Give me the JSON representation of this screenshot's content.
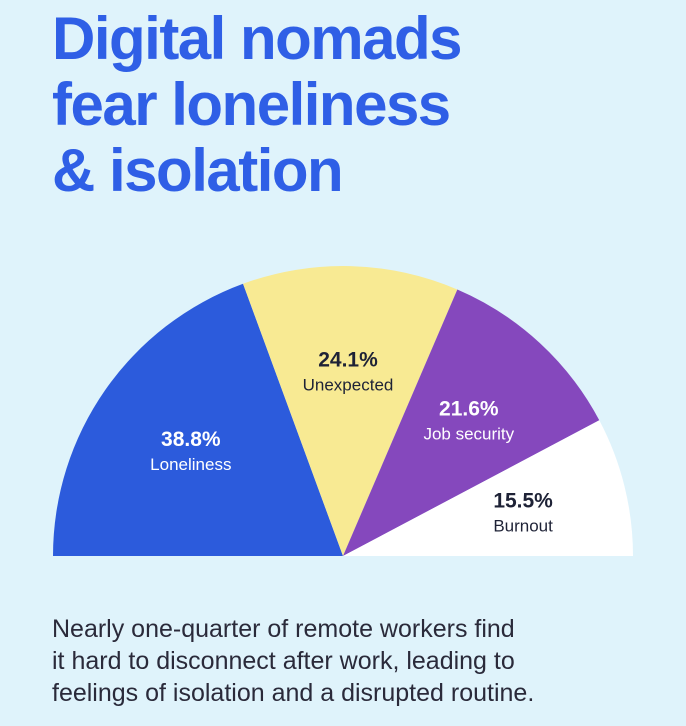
{
  "headline": {
    "lines": [
      "Digital nomads",
      "fear loneliness",
      "& isolation"
    ]
  },
  "chart_data": {
    "type": "pie",
    "variant": "half-donut-semicircle",
    "title": "Digital nomads fear loneliness & isolation",
    "slices": [
      {
        "label": "Loneliness",
        "value": 38.8,
        "display": "38.8%",
        "color": "#2c5bdc",
        "text_color": "#ffffff"
      },
      {
        "label": "Unexpected",
        "value": 24.1,
        "display": "24.1%",
        "color": "#f8ea93",
        "text_color": "#1e2236"
      },
      {
        "label": "Job security",
        "value": 21.6,
        "display": "21.6%",
        "color": "#8548bd",
        "text_color": "#ffffff"
      },
      {
        "label": "Burnout",
        "value": 15.5,
        "display": "15.5%",
        "color": "#ffffff",
        "text_color": "#1e2236"
      }
    ],
    "legend": "none",
    "grid": false
  },
  "caption": {
    "lines": [
      "Nearly one-quarter of remote workers find",
      "it hard to disconnect after work, leading to",
      "feelings of isolation and a disrupted routine."
    ]
  },
  "colors": {
    "background": "#dff3fb",
    "title": "#2f5fe6",
    "caption": "#2a2a3a"
  }
}
